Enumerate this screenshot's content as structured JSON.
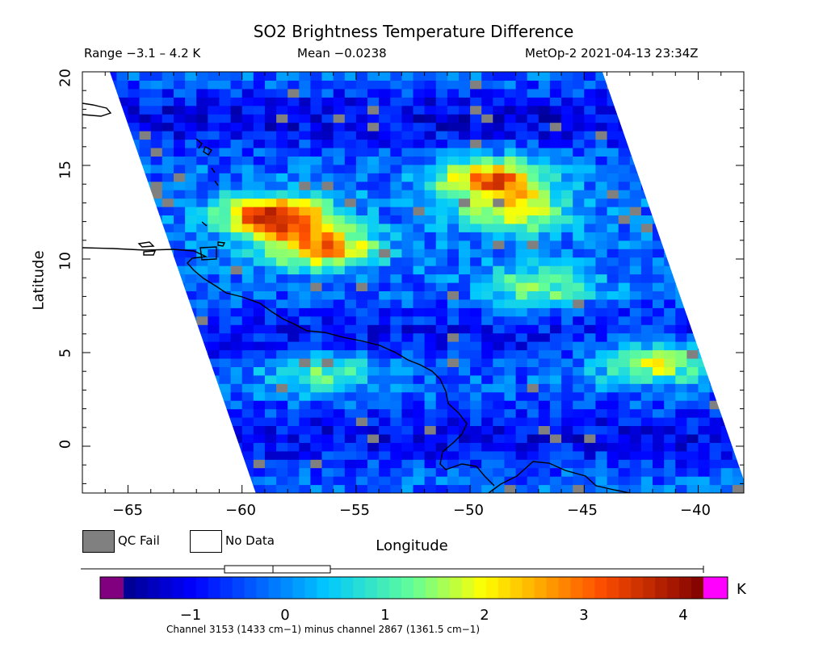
{
  "title": "SO2 Brightness Temperature Difference",
  "range_text": "Range −3.1 – 4.2 K",
  "mean_text": "Mean −0.0238",
  "source_text": "MetOp-2 2021-04-13 23:34Z",
  "axes": {
    "xlabel": "Longitude",
    "ylabel": "Latitude",
    "xlim": [
      -67,
      -38
    ],
    "ylim": [
      -2.5,
      20
    ],
    "xticks": [
      "−65",
      "−60",
      "−55",
      "−50",
      "−45",
      "−40"
    ],
    "yticks": [
      "20",
      "15",
      "10",
      "5",
      "0"
    ]
  },
  "legend": {
    "qc_fail": "QC Fail",
    "no_data": "No Data",
    "qc_color": "#808080"
  },
  "colorbar": {
    "ticks": [
      "−1",
      "0",
      "1",
      "2",
      "3",
      "4"
    ],
    "unit": "K",
    "under_color": "#800080",
    "over_color": "#ff00ff"
  },
  "footnote": "Channel 3153 (1433 cm−1) minus channel 2867 (1361.5 cm−1)",
  "chart_data": {
    "type": "heatmap",
    "title": "SO2 Brightness Temperature Difference",
    "xlabel": "Longitude",
    "ylabel": "Latitude",
    "xlim": [
      -67,
      -38
    ],
    "ylim": [
      -2.5,
      20
    ],
    "value_range": [
      -3.1,
      4.2
    ],
    "mean": -0.0238,
    "colorbar_range": [
      -1.8,
      4.2
    ],
    "unit": "K",
    "swath": {
      "top_west_lon": -65.8,
      "top_east_lon": -44.2,
      "bottom_west_lon": -59.4,
      "bottom_east_lon": -37.8
    },
    "anomalies": [
      {
        "lon": -58.5,
        "lat": 12.3,
        "value": 4.0
      },
      {
        "lon": -49.0,
        "lat": 14.3,
        "value": 3.2
      },
      {
        "lon": -56.5,
        "lat": 10.6,
        "value": 2.8
      },
      {
        "lon": -42.0,
        "lat": 4.5,
        "value": 2.2
      },
      {
        "lon": -48.0,
        "lat": 12.5,
        "value": 2.0
      },
      {
        "lon": -56.5,
        "lat": 4.0,
        "value": 1.4
      },
      {
        "lon": -47.0,
        "lat": 8.5,
        "value": 1.5
      }
    ],
    "bands": [
      {
        "lat": 17.5,
        "value": -1.2
      },
      {
        "lat": 6.0,
        "value": -1.0
      },
      {
        "lat": 0.5,
        "value": -1.1
      }
    ]
  }
}
